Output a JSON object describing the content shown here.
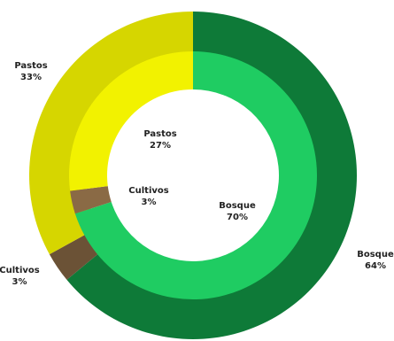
{
  "chart_data": {
    "type": "pie",
    "variant": "double-donut",
    "title": "",
    "rings": [
      {
        "ring": "outer",
        "slices": [
          {
            "name": "Bosque",
            "value": 64,
            "label": "64%",
            "color": "#0e7a38"
          },
          {
            "name": "Cultivos",
            "value": 3,
            "label": "3%",
            "color": "#6b5236"
          },
          {
            "name": "Pastos",
            "value": 33,
            "label": "33%",
            "color": "#d6d600"
          }
        ]
      },
      {
        "ring": "inner",
        "slices": [
          {
            "name": "Bosque",
            "value": 70,
            "label": "70%",
            "color": "#1fcc62"
          },
          {
            "name": "Cultivos",
            "value": 3,
            "label": "3%",
            "color": "#8a6a45"
          },
          {
            "name": "Pastos",
            "value": 27,
            "label": "27%",
            "color": "#f2f200"
          }
        ]
      }
    ],
    "legend": "none"
  }
}
